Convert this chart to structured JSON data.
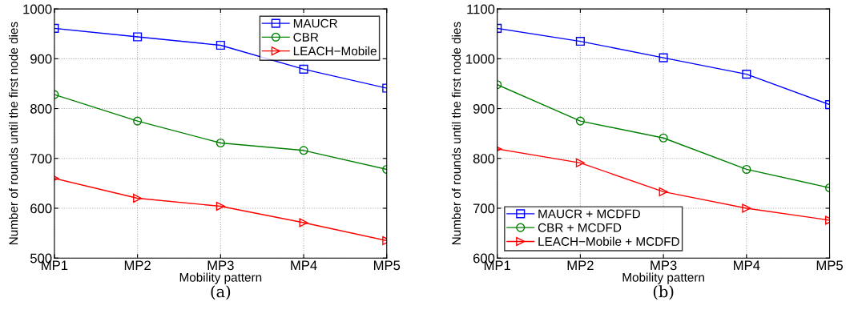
{
  "chart_data": [
    {
      "type": "line",
      "xlabel": "Mobility pattern",
      "ylabel": "Number of rounds until the first node dies",
      "categories": [
        "MP1",
        "MP2",
        "MP3",
        "MP4",
        "MP5"
      ],
      "ylim": [
        500,
        1000
      ],
      "yticks": [
        500,
        600,
        700,
        800,
        900,
        1000
      ],
      "grid": true,
      "legend": "top right",
      "line_style": "solid",
      "annotations": [
        "(a)"
      ],
      "series": [
        {
          "name": "MAUCR",
          "color": "#0000ff",
          "marker": "square",
          "values": [
            961,
            944,
            927,
            879,
            841
          ]
        },
        {
          "name": "CBR",
          "color": "#008000",
          "marker": "circle",
          "values": [
            828,
            775,
            731,
            716,
            678
          ]
        },
        {
          "name": "LEACH−Mobile",
          "color": "#ff0000",
          "marker": "triangle",
          "values": [
            660,
            620,
            604,
            571,
            535
          ]
        }
      ]
    },
    {
      "type": "line",
      "xlabel": "Mobility pattern",
      "ylabel": "Number of rounds until the first node dies",
      "categories": [
        "MP1",
        "MP2",
        "MP3",
        "MP4",
        "MP5"
      ],
      "ylim": [
        600,
        1100
      ],
      "yticks": [
        600,
        700,
        800,
        900,
        1000,
        1100
      ],
      "grid": true,
      "legend": "bottom left",
      "line_style": "solid",
      "annotations": [
        "(b)"
      ],
      "series": [
        {
          "name": "MAUCR + MCDFD",
          "color": "#0000ff",
          "marker": "square",
          "values": [
            1061,
            1035,
            1002,
            969,
            908
          ]
        },
        {
          "name": "CBR + MCDFD",
          "color": "#008000",
          "marker": "circle",
          "values": [
            948,
            875,
            841,
            778,
            741
          ]
        },
        {
          "name": "LEACH−Mobile + MCDFD",
          "color": "#ff0000",
          "marker": "triangle",
          "values": [
            819,
            791,
            733,
            700,
            676
          ]
        }
      ]
    }
  ]
}
